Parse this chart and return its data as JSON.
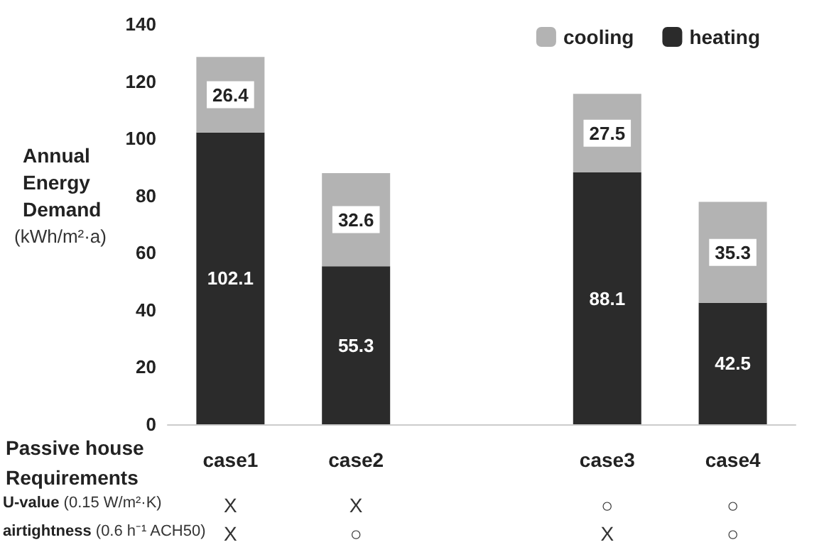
{
  "chart_data": {
    "type": "bar",
    "stacked": true,
    "ylabel": "Annual Energy Demand (kWh/m²·a)",
    "categories": [
      "case1",
      "case2",
      null,
      "case3",
      "case4"
    ],
    "series": [
      {
        "name": "heating",
        "color": "#2b2b2b",
        "values": [
          102.1,
          55.3,
          null,
          88.1,
          42.5
        ]
      },
      {
        "name": "cooling",
        "color": "#b3b3b3",
        "values": [
          26.4,
          32.6,
          null,
          27.5,
          35.3
        ]
      }
    ],
    "ylim": [
      0,
      140
    ],
    "yticks": [
      0,
      20,
      40,
      60,
      80,
      100,
      120,
      140
    ],
    "data_labels": true,
    "grid": false,
    "legend": "top right",
    "annotations": [
      "Passive house Requirements",
      "U-value (0.15 W/m²·K)",
      "X",
      "X",
      "○",
      "○",
      "airtightness (0.6 h⁻¹ ACH50)",
      "X",
      "○",
      "X",
      "○"
    ]
  }
}
